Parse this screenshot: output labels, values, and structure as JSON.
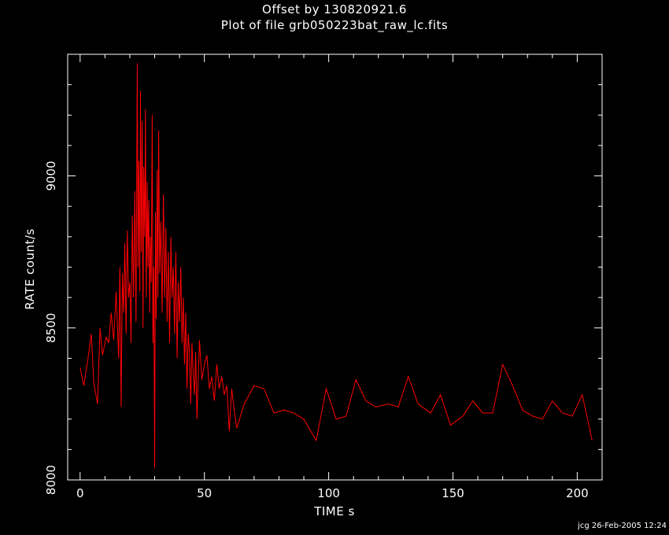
{
  "title": "Offset by 130820921.6",
  "subtitle": "Plot of file grb050223bat_raw_lc.fits",
  "footer_stamp": "jcg 26-Feb-2005 12:24",
  "colors": {
    "background": "#000000",
    "axes": "#ffffff",
    "series": "#ff0000"
  },
  "chart_data": {
    "type": "line",
    "title": "Offset by 130820921.6",
    "subtitle": "Plot of file grb050223bat_raw_lc.fits",
    "xlabel": "TIME  s",
    "ylabel": "RATE  count/s",
    "xlim": [
      -5,
      210
    ],
    "ylim": [
      8000,
      9400
    ],
    "xticks": [
      0,
      50,
      100,
      150,
      200
    ],
    "yticks": [
      8000,
      8500,
      9000
    ],
    "grid": false,
    "series": [
      {
        "color": "#ff0000",
        "x": [
          0,
          1.5,
          3,
          4.5,
          5.5,
          7,
          8,
          9,
          10.5,
          11.5,
          12.5,
          13.5,
          14.5,
          15.5,
          16,
          16.5,
          17,
          17.5,
          18,
          18.5,
          19,
          19.5,
          20,
          20.5,
          21,
          21.5,
          22,
          22.5,
          23,
          23.3,
          23.6,
          24,
          24.3,
          24.6,
          25,
          25.3,
          25.6,
          26,
          26.3,
          26.6,
          27,
          27.3,
          27.6,
          28,
          28.3,
          28.6,
          29,
          29.3,
          29.6,
          30,
          30.3,
          30.6,
          31,
          31.3,
          31.6,
          32,
          32.5,
          33,
          33.5,
          34,
          34.5,
          35,
          35.5,
          36,
          36.5,
          37,
          37.5,
          38,
          38.5,
          39,
          39.5,
          40,
          40.5,
          41,
          41.5,
          42,
          42.5,
          43,
          43.5,
          44,
          44.5,
          45,
          45.5,
          46,
          46.5,
          47,
          48,
          49,
          50,
          51,
          52,
          53,
          54,
          55,
          56,
          57,
          58,
          59,
          60,
          61,
          62,
          63,
          66,
          70,
          74,
          78,
          82,
          86,
          90,
          95,
          99,
          103,
          107,
          111,
          115,
          119,
          124,
          128,
          132,
          136,
          141,
          145,
          149,
          154,
          158,
          162,
          166,
          170,
          174,
          178,
          182,
          186,
          190,
          194,
          198,
          202,
          206
        ],
        "values": [
          8370,
          8310,
          8390,
          8480,
          8320,
          8250,
          8500,
          8410,
          8470,
          8450,
          8550,
          8460,
          8620,
          8400,
          8700,
          8240,
          8680,
          8550,
          8780,
          8480,
          8820,
          8600,
          8650,
          8450,
          8870,
          8600,
          8950,
          8520,
          9370,
          8700,
          9050,
          8620,
          9280,
          8750,
          9180,
          8500,
          9030,
          8800,
          9220,
          8600,
          8980,
          8700,
          8920,
          8550,
          8800,
          8650,
          9200,
          8450,
          8700,
          8040,
          8880,
          8530,
          9020,
          8600,
          9150,
          8680,
          8850,
          8550,
          8940,
          8600,
          8830,
          8520,
          8750,
          8450,
          8800,
          8600,
          8700,
          8480,
          8750,
          8400,
          8650,
          8520,
          8700,
          8450,
          8600,
          8380,
          8550,
          8300,
          8480,
          8420,
          8250,
          8450,
          8350,
          8280,
          8420,
          8200,
          8460,
          8330,
          8380,
          8410,
          8300,
          8340,
          8260,
          8380,
          8300,
          8340,
          8280,
          8310,
          8160,
          8300,
          8230,
          8170,
          8250,
          8310,
          8300,
          8220,
          8230,
          8220,
          8200,
          8130,
          8300,
          8200,
          8210,
          8330,
          8260,
          8240,
          8250,
          8240,
          8340,
          8250,
          8220,
          8280,
          8180,
          8210,
          8260,
          8220,
          8220,
          8380,
          8310,
          8230,
          8210,
          8200,
          8260,
          8220,
          8210,
          8280,
          8130
        ]
      }
    ]
  }
}
